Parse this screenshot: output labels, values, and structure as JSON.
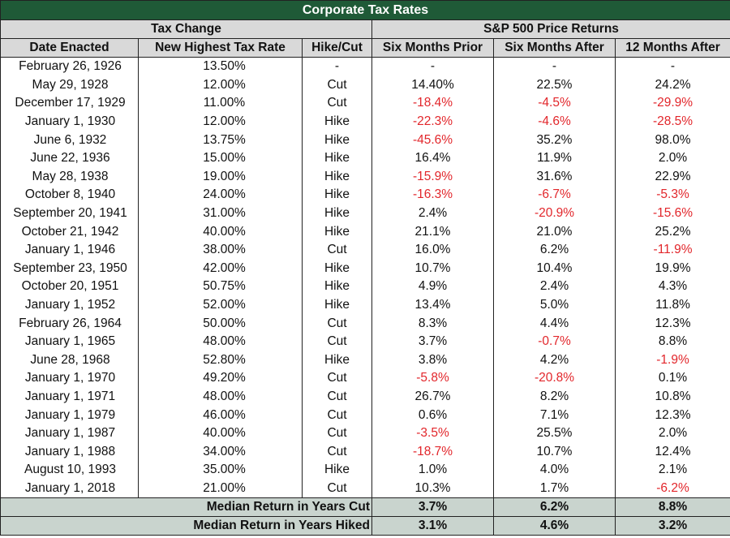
{
  "title": "Corporate Tax Rates",
  "groups": {
    "tax_change": "Tax Change",
    "sp500": "S&P 500 Price Returns"
  },
  "columns": [
    "Date Enacted",
    "New Highest Tax Rate",
    "Hike/Cut",
    "Six Months Prior",
    "Six Months After",
    "12 Months After"
  ],
  "rows": [
    [
      "February 26, 1926",
      "13.50%",
      "-",
      "-",
      "-",
      "-"
    ],
    [
      "May 29, 1928",
      "12.00%",
      "Cut",
      "14.40%",
      "22.5%",
      "24.2%"
    ],
    [
      "December 17, 1929",
      "11.00%",
      "Cut",
      "-18.4%",
      "-4.5%",
      "-29.9%"
    ],
    [
      "January 1, 1930",
      "12.00%",
      "Hike",
      "-22.3%",
      "-4.6%",
      "-28.5%"
    ],
    [
      "June 6, 1932",
      "13.75%",
      "Hike",
      "-45.6%",
      "35.2%",
      "98.0%"
    ],
    [
      "June 22, 1936",
      "15.00%",
      "Hike",
      "16.4%",
      "11.9%",
      "2.0%"
    ],
    [
      "May 28, 1938",
      "19.00%",
      "Hike",
      "-15.9%",
      "31.6%",
      "22.9%"
    ],
    [
      "October 8, 1940",
      "24.00%",
      "Hike",
      "-16.3%",
      "-6.7%",
      "-5.3%"
    ],
    [
      "September 20, 1941",
      "31.00%",
      "Hike",
      "2.4%",
      "-20.9%",
      "-15.6%"
    ],
    [
      "October 21, 1942",
      "40.00%",
      "Hike",
      "21.1%",
      "21.0%",
      "25.2%"
    ],
    [
      "January 1, 1946",
      "38.00%",
      "Cut",
      "16.0%",
      "6.2%",
      "-11.9%"
    ],
    [
      "September 23, 1950",
      "42.00%",
      "Hike",
      "10.7%",
      "10.4%",
      "19.9%"
    ],
    [
      "October 20, 1951",
      "50.75%",
      "Hike",
      "4.9%",
      "2.4%",
      "4.3%"
    ],
    [
      "January 1, 1952",
      "52.00%",
      "Hike",
      "13.4%",
      "5.0%",
      "11.8%"
    ],
    [
      "February 26, 1964",
      "50.00%",
      "Cut",
      "8.3%",
      "4.4%",
      "12.3%"
    ],
    [
      "January 1, 1965",
      "48.00%",
      "Cut",
      "3.7%",
      "-0.7%",
      "8.8%"
    ],
    [
      "June 28, 1968",
      "52.80%",
      "Hike",
      "3.8%",
      "4.2%",
      "-1.9%"
    ],
    [
      "January 1, 1970",
      "49.20%",
      "Cut",
      "-5.8%",
      "-20.8%",
      "0.1%"
    ],
    [
      "January 1, 1971",
      "48.00%",
      "Cut",
      "26.7%",
      "8.2%",
      "10.8%"
    ],
    [
      "January 1, 1979",
      "46.00%",
      "Cut",
      "0.6%",
      "7.1%",
      "12.3%"
    ],
    [
      "January 1, 1987",
      "40.00%",
      "Cut",
      "-3.5%",
      "25.5%",
      "2.0%"
    ],
    [
      "January 1, 1988",
      "34.00%",
      "Cut",
      "-18.7%",
      "10.7%",
      "12.4%"
    ],
    [
      "August 10, 1993",
      "35.00%",
      "Hike",
      "1.0%",
      "4.0%",
      "2.1%"
    ],
    [
      "January 1, 2018",
      "21.00%",
      "Cut",
      "10.3%",
      "1.7%",
      "-6.2%"
    ]
  ],
  "summary": [
    {
      "label": "Median Return in Years Cut",
      "values": [
        "3.7%",
        "6.2%",
        "8.8%"
      ]
    },
    {
      "label": "Median Return in Years Hiked",
      "values": [
        "3.1%",
        "4.6%",
        "3.2%"
      ]
    }
  ],
  "colors": {
    "title_bg": "#1f5a37",
    "header_bg": "#d9d9d9",
    "summary_bg": "#c9d4ce",
    "negative_text": "#e2262b"
  }
}
